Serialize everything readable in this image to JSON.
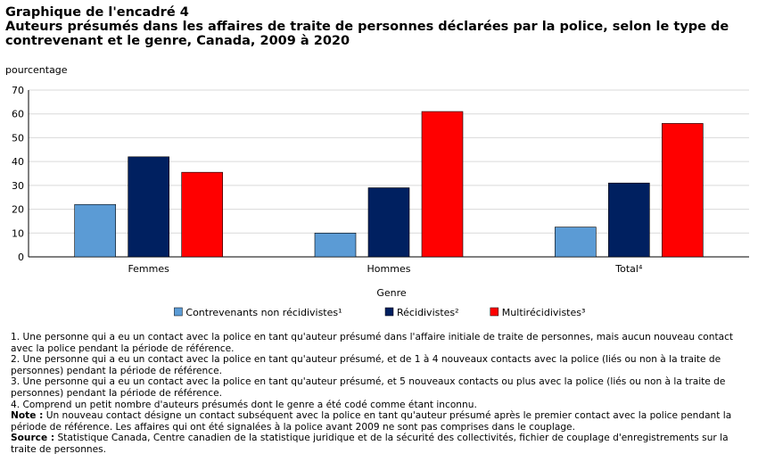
{
  "header": {
    "kicker": "Graphique de l'encadré 4",
    "title": "Auteurs présumés dans les affaires de traite de personnes déclarées par la police, selon le type de contrevenant et le genre, Canada, 2009 à 2020"
  },
  "chart_data": {
    "type": "bar",
    "categories": [
      "Femmes",
      "Hommes",
      "Total⁴"
    ],
    "series": [
      {
        "name": "Contrevenants non récidivistes¹",
        "color": "#5b9bd5",
        "values": [
          22,
          10,
          12.5
        ]
      },
      {
        "name": "Récidivistes²",
        "color": "#002060",
        "values": [
          42,
          29,
          31
        ]
      },
      {
        "name": "Multirécidivistes³",
        "color": "#ff0000",
        "values": [
          35.5,
          61,
          56
        ]
      }
    ],
    "ylabel": "pourcentage",
    "xlabel": "Genre",
    "ylim": [
      0,
      70
    ],
    "yticks": [
      0,
      10,
      20,
      30,
      40,
      50,
      60,
      70
    ],
    "grid": true,
    "legend": "bottom"
  },
  "notes": {
    "n1": "1. Une personne qui a eu un contact avec la police en tant qu'auteur présumé dans l'affaire initiale de traite de personnes, mais aucun nouveau contact avec la police pendant la période de référence.",
    "n2": "2. Une personne qui a eu un contact avec la police en tant qu'auteur présumé, et de 1 à 4 nouveaux contacts avec la police (liés ou non à la traite de personnes) pendant la période de référence.",
    "n3": "3. Une personne qui a eu un contact avec la police en tant qu'auteur présumé, et 5 nouveaux contacts ou plus avec la police (liés ou non à la traite de personnes) pendant la période de référence.",
    "n4": "4. Comprend un petit nombre d'auteurs présumés dont le genre a été codé comme étant inconnu.",
    "note_label": "Note :",
    "note_text": " Un nouveau contact désigne un contact subséquent avec la police en tant qu'auteur présumé après le premier contact avec la police pendant la période de référence. Les affaires qui ont été signalées à la police avant 2009 ne sont pas comprises dans le couplage.",
    "source_label": "Source :",
    "source_text": " Statistique Canada, Centre canadien de la statistique juridique et de la sécurité des collectivités, fichier de couplage d'enregistrements sur la traite de personnes."
  }
}
